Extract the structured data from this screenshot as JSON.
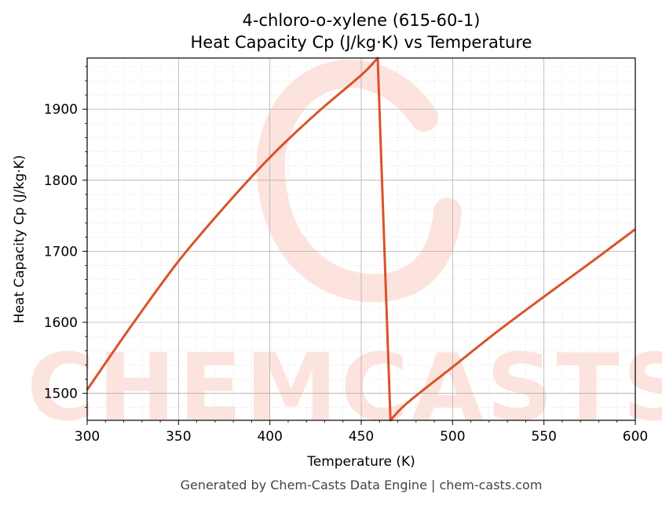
{
  "chart_data": {
    "type": "line",
    "title": "4-chloro-o-xylene (615-60-1)",
    "subtitle": "Heat Capacity Cp (J/kg·K) vs Temperature",
    "xlabel": "Temperature (K)",
    "ylabel": "Heat Capacity Cp (J/kg·K)",
    "xlim": [
      300,
      600
    ],
    "ylim": [
      1462,
      1972
    ],
    "xticks": [
      300,
      350,
      400,
      450,
      500,
      550,
      600
    ],
    "yticks": [
      1500,
      1600,
      1700,
      1800,
      1900
    ],
    "grid": true,
    "series": [
      {
        "color": "#d9532a",
        "x": [
          300,
          325,
          350,
          375,
          400,
          425,
          450,
          459,
          466,
          475,
          500,
          525,
          550,
          575,
          600
        ],
        "y": [
          1505,
          1598,
          1686,
          1762,
          1832,
          1893,
          1948,
          1972,
          1462,
          1486,
          1537,
          1588,
          1636,
          1683,
          1731
        ]
      }
    ]
  },
  "watermark": {
    "text": "CHEMCASTS",
    "color": "#fde3de"
  },
  "footer": {
    "text": "Generated by Chem-Casts Data Engine | chem-casts.com"
  }
}
